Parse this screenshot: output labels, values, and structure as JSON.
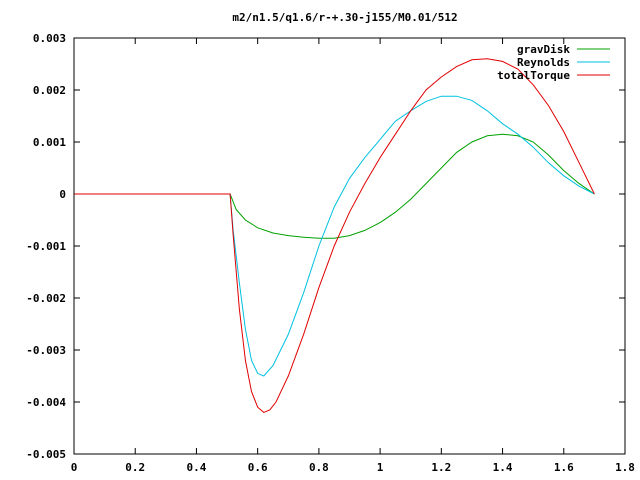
{
  "chart_data": {
    "type": "line",
    "title": "m2/n1.5/q1.6/r-+.30-j155/M0.01/512",
    "xlabel": "",
    "ylabel": "",
    "xlim": [
      0,
      1.8
    ],
    "ylim": [
      -0.005,
      0.003
    ],
    "xticks": [
      "0",
      "0.2",
      "0.4",
      "0.6",
      "0.8",
      "1",
      "1.2",
      "1.4",
      "1.6",
      "1.8"
    ],
    "yticks": [
      "0.003",
      "0.002",
      "0.001",
      "0",
      "-0.001",
      "-0.002",
      "-0.003",
      "-0.004",
      "-0.005"
    ],
    "grid": false,
    "legend_position": "top-right",
    "series": [
      {
        "name": "gravDisk",
        "color": "#00a000",
        "x": [
          0,
          0.5,
          0.51,
          0.53,
          0.56,
          0.6,
          0.65,
          0.7,
          0.75,
          0.8,
          0.85,
          0.9,
          0.95,
          1.0,
          1.05,
          1.1,
          1.15,
          1.2,
          1.25,
          1.3,
          1.35,
          1.4,
          1.45,
          1.5,
          1.55,
          1.6,
          1.65,
          1.7
        ],
        "y": [
          0,
          0,
          0,
          -0.0003,
          -0.0005,
          -0.00065,
          -0.00075,
          -0.0008,
          -0.00083,
          -0.00085,
          -0.00085,
          -0.0008,
          -0.0007,
          -0.00055,
          -0.00035,
          -0.0001,
          0.0002,
          0.0005,
          0.0008,
          0.001,
          0.00112,
          0.00115,
          0.00112,
          0.001,
          0.00075,
          0.00045,
          0.0002,
          0
        ]
      },
      {
        "name": "Reynolds",
        "color": "#00c0e0",
        "x": [
          0,
          0.5,
          0.51,
          0.52,
          0.54,
          0.56,
          0.58,
          0.6,
          0.62,
          0.65,
          0.7,
          0.75,
          0.8,
          0.85,
          0.9,
          0.95,
          1.0,
          1.05,
          1.1,
          1.15,
          1.2,
          1.25,
          1.3,
          1.35,
          1.4,
          1.45,
          1.5,
          1.55,
          1.6,
          1.65,
          1.7
        ],
        "y": [
          0,
          0,
          0,
          -0.0007,
          -0.0017,
          -0.0026,
          -0.0032,
          -0.00345,
          -0.0035,
          -0.0033,
          -0.0027,
          -0.0019,
          -0.001,
          -0.00025,
          0.0003,
          0.0007,
          0.00105,
          0.0014,
          0.0016,
          0.00178,
          0.00188,
          0.00188,
          0.0018,
          0.0016,
          0.00135,
          0.00115,
          0.0009,
          0.0006,
          0.00035,
          0.00015,
          0
        ]
      },
      {
        "name": "totalTorque",
        "color": "#e00000",
        "x": [
          0,
          0.5,
          0.51,
          0.52,
          0.54,
          0.56,
          0.58,
          0.6,
          0.62,
          0.64,
          0.66,
          0.7,
          0.75,
          0.8,
          0.85,
          0.9,
          0.95,
          1.0,
          1.05,
          1.1,
          1.15,
          1.2,
          1.25,
          1.3,
          1.35,
          1.4,
          1.45,
          1.5,
          1.55,
          1.6,
          1.65,
          1.7
        ],
        "y": [
          0,
          0,
          0,
          -0.0008,
          -0.0022,
          -0.0032,
          -0.0038,
          -0.0041,
          -0.0042,
          -0.00415,
          -0.004,
          -0.0035,
          -0.0027,
          -0.0018,
          -0.001,
          -0.00035,
          0.0002,
          0.0007,
          0.00115,
          0.0016,
          0.002,
          0.00225,
          0.00245,
          0.00258,
          0.0026,
          0.00255,
          0.0024,
          0.0021,
          0.0017,
          0.0012,
          0.0006,
          0
        ]
      }
    ]
  }
}
